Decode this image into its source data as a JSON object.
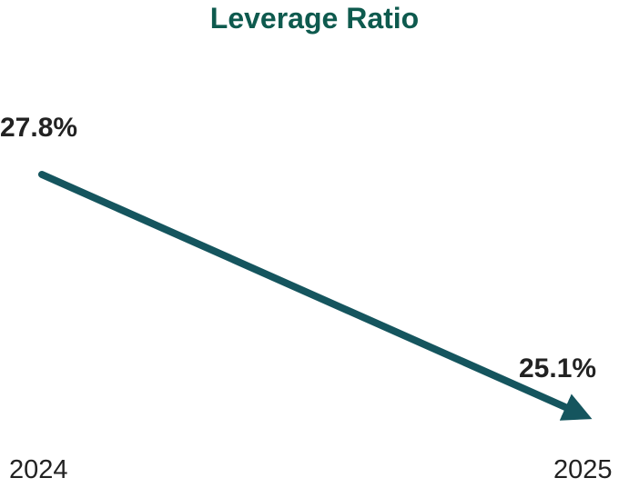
{
  "chart_data": {
    "type": "line",
    "title": "Leverage Ratio",
    "categories": [
      "2024",
      "2025"
    ],
    "series": [
      {
        "values": [
          27.8,
          25.1
        ]
      }
    ],
    "data_labels": [
      "27.8%",
      "25.1%"
    ],
    "xlabel": "",
    "ylabel": "",
    "grid": false,
    "end_marker": "arrow"
  },
  "colors": {
    "title": "#0e5a4e",
    "line": "#15555e",
    "text": "#222222"
  }
}
